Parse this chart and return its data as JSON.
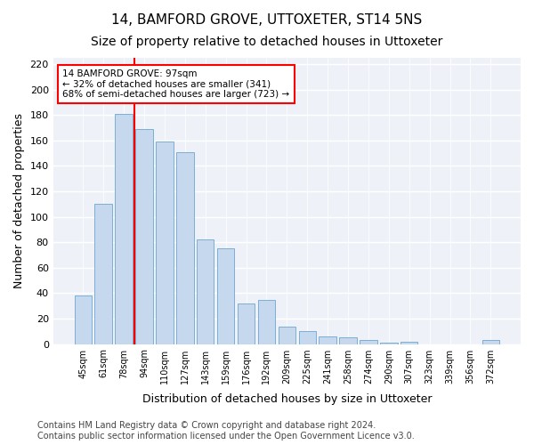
{
  "title1": "14, BAMFORD GROVE, UTTOXETER, ST14 5NS",
  "title2": "Size of property relative to detached houses in Uttoxeter",
  "xlabel": "Distribution of detached houses by size in Uttoxeter",
  "ylabel": "Number of detached properties",
  "categories": [
    "45sqm",
    "61sqm",
    "78sqm",
    "94sqm",
    "110sqm",
    "127sqm",
    "143sqm",
    "159sqm",
    "176sqm",
    "192sqm",
    "209sqm",
    "225sqm",
    "241sqm",
    "258sqm",
    "274sqm",
    "290sqm",
    "307sqm",
    "323sqm",
    "339sqm",
    "356sqm",
    "372sqm"
  ],
  "values": [
    38,
    110,
    181,
    169,
    159,
    151,
    82,
    75,
    32,
    35,
    14,
    10,
    6,
    5,
    3,
    1,
    2,
    0,
    0,
    0,
    3
  ],
  "bar_color": "#c5d8ed",
  "bar_edge_color": "#7bafd4",
  "vline_color": "red",
  "vline_x": 2.5,
  "annotation_text": "14 BAMFORD GROVE: 97sqm\n← 32% of detached houses are smaller (341)\n68% of semi-detached houses are larger (723) →",
  "annotation_box_color": "white",
  "annotation_box_edge": "red",
  "ylim": [
    0,
    225
  ],
  "yticks": [
    0,
    20,
    40,
    60,
    80,
    100,
    120,
    140,
    160,
    180,
    200,
    220
  ],
  "background_color": "#eef2f8",
  "footer_text": "Contains HM Land Registry data © Crown copyright and database right 2024.\nContains public sector information licensed under the Open Government Licence v3.0.",
  "title1_fontsize": 11,
  "title2_fontsize": 10,
  "xlabel_fontsize": 9,
  "ylabel_fontsize": 9,
  "footer_fontsize": 7
}
